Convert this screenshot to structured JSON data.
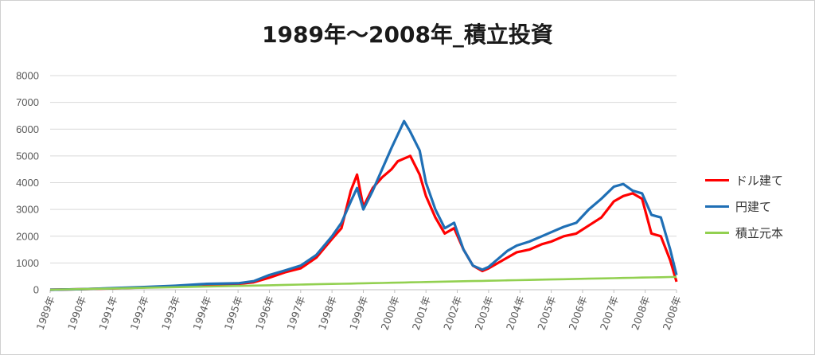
{
  "chart_data": {
    "type": "line",
    "title": "1989年～2008年_積立投資",
    "xlabel": "",
    "ylabel": "",
    "ylim": [
      0,
      8000
    ],
    "yticks": [
      0,
      1000,
      2000,
      3000,
      4000,
      5000,
      6000,
      7000,
      8000
    ],
    "ytick_labels": [
      "0",
      "1000",
      "2000",
      "3000",
      "4000",
      "5000",
      "6000",
      "7000",
      "8000"
    ],
    "x_tick_labels": [
      "1989年",
      "1990年",
      "1991年",
      "1992年",
      "1993年",
      "1994年",
      "1995年",
      "1996年",
      "1997年",
      "1998年",
      "1999年",
      "2000年",
      "2001年",
      "2002年",
      "2003年",
      "2004年",
      "2005年",
      "2006年",
      "2007年",
      "2008年",
      "2008年"
    ],
    "x": [
      1989.0,
      1990.0,
      1991.0,
      1992.0,
      1993.0,
      1994.0,
      1995.0,
      1995.5,
      1996.0,
      1996.5,
      1997.0,
      1997.5,
      1998.0,
      1998.3,
      1998.6,
      1998.8,
      1999.0,
      1999.3,
      1999.6,
      1999.9,
      2000.1,
      2000.3,
      2000.5,
      2000.8,
      2001.0,
      2001.3,
      2001.6,
      2001.9,
      2002.2,
      2002.5,
      2002.8,
      2003.0,
      2003.3,
      2003.6,
      2003.9,
      2004.3,
      2004.7,
      2005.0,
      2005.4,
      2005.8,
      2006.2,
      2006.6,
      2007.0,
      2007.3,
      2007.6,
      2007.9,
      2008.2,
      2008.5,
      2008.8,
      2009.0
    ],
    "grid": true,
    "legend_position": "right",
    "series": [
      {
        "name": "ドル建て",
        "color": "#ff0000",
        "values": [
          0,
          20,
          50,
          90,
          130,
          190,
          220,
          280,
          450,
          650,
          800,
          1200,
          1900,
          2300,
          3700,
          4300,
          3100,
          3800,
          4200,
          4500,
          4800,
          4900,
          5000,
          4300,
          3500,
          2700,
          2100,
          2300,
          1500,
          900,
          700,
          800,
          1000,
          1200,
          1400,
          1500,
          1700,
          1800,
          2000,
          2100,
          2400,
          2700,
          3300,
          3500,
          3600,
          3400,
          2100,
          2000,
          1100,
          300
        ]
      },
      {
        "name": "円建て",
        "color": "#1f6fb5",
        "values": [
          0,
          20,
          60,
          100,
          150,
          220,
          240,
          320,
          550,
          720,
          900,
          1300,
          2000,
          2500,
          3300,
          3800,
          3000,
          3700,
          4500,
          5300,
          5800,
          6300,
          5900,
          5200,
          4000,
          3000,
          2300,
          2500,
          1500,
          900,
          750,
          850,
          1150,
          1450,
          1650,
          1800,
          2000,
          2150,
          2350,
          2500,
          3000,
          3400,
          3850,
          3950,
          3700,
          3600,
          2800,
          2700,
          1500,
          550
        ]
      },
      {
        "name": "積立元本",
        "color": "#92d050",
        "values": [
          0,
          24,
          48,
          72,
          96,
          120,
          144,
          156,
          168,
          180,
          192,
          204,
          216,
          223,
          230,
          235,
          240,
          247,
          254,
          262,
          266,
          271,
          276,
          283,
          288,
          295,
          302,
          310,
          317,
          324,
          331,
          336,
          343,
          350,
          358,
          367,
          377,
          384,
          394,
          403,
          413,
          422,
          432,
          439,
          446,
          454,
          461,
          468,
          475,
          480
        ]
      }
    ]
  }
}
